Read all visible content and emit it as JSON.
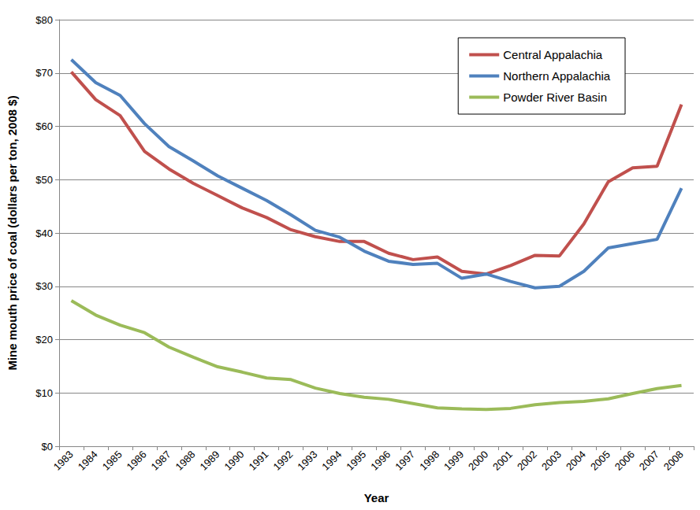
{
  "chart_data": {
    "type": "line",
    "x_label": "Year",
    "y_label": "Mine mouth price of coal (dollars per ton, 2008 $)",
    "categories": [
      "1983",
      "1984",
      "1985",
      "1986",
      "1987",
      "1988",
      "1989",
      "1990",
      "1991",
      "1992",
      "1993",
      "1994",
      "1995",
      "1996",
      "1997",
      "1998",
      "1999",
      "2000",
      "2001",
      "2002",
      "2003",
      "2004",
      "2005",
      "2006",
      "2007",
      "2008"
    ],
    "series": [
      {
        "name": "Central Appalachia",
        "color": "#c0504d",
        "values": [
          70.2,
          65.0,
          62.0,
          55.3,
          52.0,
          49.3,
          47.0,
          44.7,
          42.9,
          40.6,
          39.3,
          38.4,
          38.4,
          36.2,
          35.0,
          35.5,
          32.8,
          32.3,
          33.9,
          35.8,
          35.7,
          41.7,
          49.6,
          52.2,
          52.5,
          64.1
        ]
      },
      {
        "name": "Northern Appalachia",
        "color": "#4f81bd",
        "values": [
          72.5,
          68.2,
          65.8,
          60.5,
          56.2,
          53.5,
          50.7,
          48.4,
          46.1,
          43.4,
          40.5,
          39.2,
          36.6,
          34.7,
          34.1,
          34.3,
          31.5,
          32.3,
          30.9,
          29.7,
          30.0,
          32.8,
          37.2,
          38.0,
          38.8,
          48.4
        ]
      },
      {
        "name": "Powder River Basin",
        "color": "#9bbb59",
        "values": [
          27.3,
          24.6,
          22.7,
          21.3,
          18.6,
          16.7,
          14.9,
          13.9,
          12.8,
          12.5,
          10.9,
          9.9,
          9.2,
          8.8,
          8.0,
          7.2,
          7.0,
          6.9,
          7.1,
          7.8,
          8.2,
          8.4,
          8.9,
          9.9,
          10.8,
          11.4
        ]
      }
    ],
    "ylim": [
      0,
      80
    ],
    "yticks": [
      {
        "value": 0,
        "label": "$0"
      },
      {
        "value": 10,
        "label": "$10"
      },
      {
        "value": 20,
        "label": "$20"
      },
      {
        "value": 30,
        "label": "$30"
      },
      {
        "value": 40,
        "label": "$40"
      },
      {
        "value": 50,
        "label": "$50"
      },
      {
        "value": 60,
        "label": "$60"
      },
      {
        "value": 70,
        "label": "$70"
      },
      {
        "value": 80,
        "label": "$80"
      }
    ],
    "grid": true,
    "legend": "upper right"
  }
}
